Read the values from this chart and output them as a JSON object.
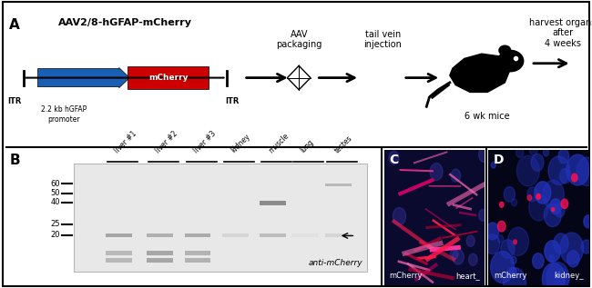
{
  "panel_A_label": "A",
  "panel_B_label": "B",
  "panel_C_label": "C",
  "panel_D_label": "D",
  "construct_title": "AAV2/8-hGFAP-mCherry",
  "aav_packaging": "AAV\npackaging",
  "tail_vein": "tail vein\ninjection",
  "harvest": "harvest organs\nafter\n4 weeks",
  "six_wk": "6 wk mice",
  "itr_left": "ITR",
  "itr_right": "ITR",
  "promoter_label": "2.2 kb hGFAP\npromoter",
  "mcherry_label": "mCherry",
  "gel_lanes": [
    "liver #1",
    "liver #2",
    "liver #3",
    "kidney",
    "muscle",
    "lung",
    "testes"
  ],
  "mw_markers": [
    60,
    50,
    40,
    25,
    20
  ],
  "gel_annotation": "anti-mCherry",
  "panel_C_labels": [
    "mCherry",
    "heart"
  ],
  "panel_D_labels": [
    "mCherry",
    "kidney"
  ],
  "bg_color": "#ffffff",
  "border_color": "#000000",
  "blue_color": "#1a5fb4",
  "red_color": "#cc0000",
  "arrow_color": "#000000"
}
